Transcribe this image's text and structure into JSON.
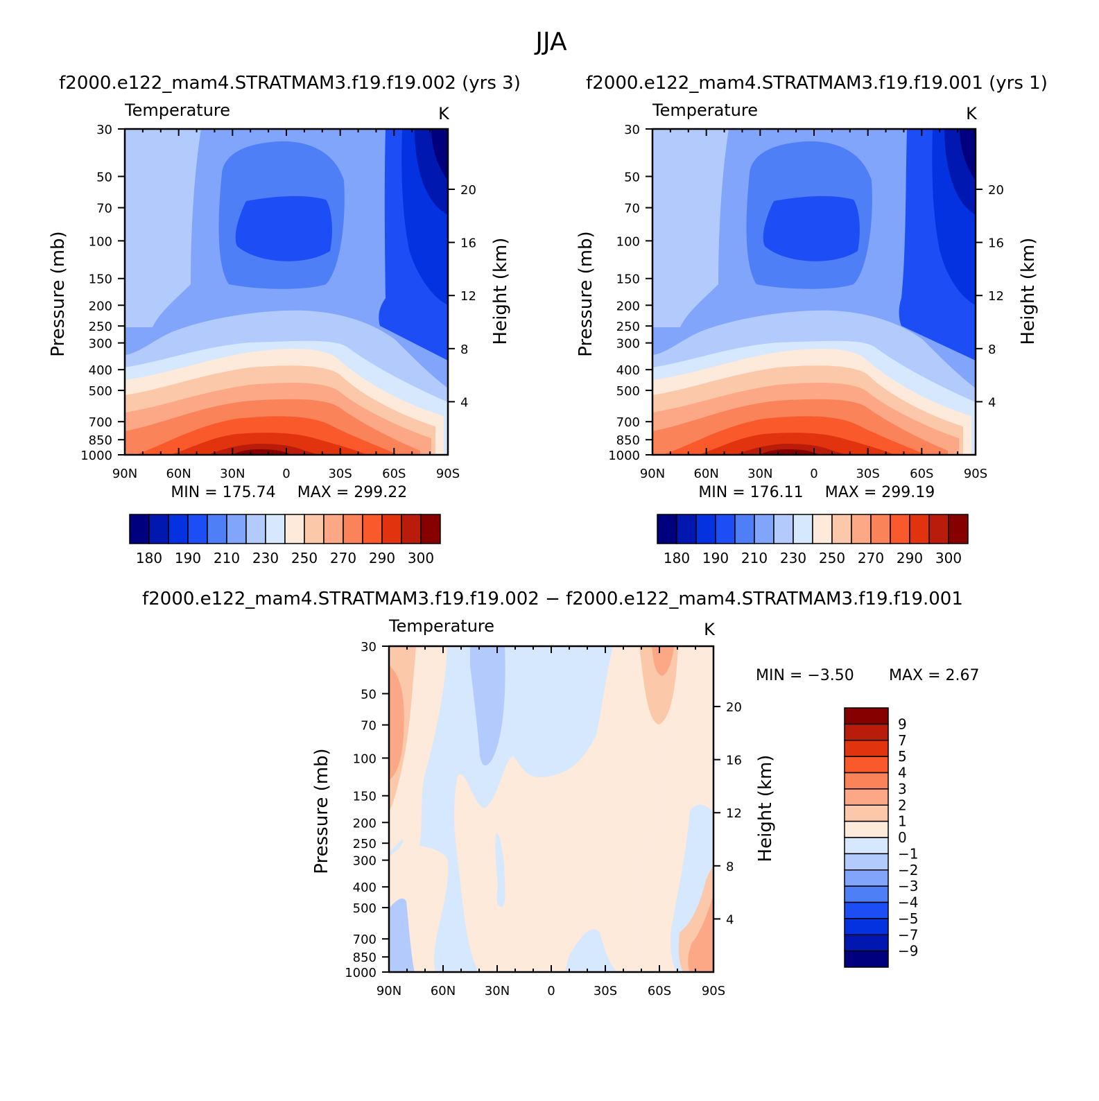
{
  "page": {
    "title": "JJA",
    "diff_title": "f2000.e122_mam4.STRATMAM3.f19.f19.002 − f2000.e122_mam4.STRATMAM3.f19.f19.001"
  },
  "colors": {
    "abs_palette": [
      "#00007f",
      "#0018b0",
      "#0532e0",
      "#1c4df5",
      "#4f7ff7",
      "#80a5fa",
      "#b3cbfc",
      "#d6e8fd",
      "#fdeadb",
      "#fcc8aa",
      "#fca886",
      "#fb835a",
      "#fa5a2b",
      "#e1340e",
      "#b91c0a",
      "#860000"
    ],
    "diff_palette": [
      "#00007f",
      "#0018b0",
      "#0532e0",
      "#1c4df5",
      "#4f7ff7",
      "#80a5fa",
      "#b3cbfc",
      "#d6e8fd",
      "#fdeadb",
      "#fcc8aa",
      "#fca886",
      "#fb835a",
      "#fa5a2b",
      "#e1340e",
      "#b91c0a",
      "#860000"
    ]
  },
  "chart_data": [
    {
      "id": "panel1",
      "type": "heatmap",
      "plot_type": "latitude-pressure contour",
      "title": "f2000.e122_mam4.STRATMAM3.f19.f19.002  (yrs  3)",
      "variable": "Temperature",
      "units": "K",
      "ylabel": "Pressure  (mb)",
      "ylabel_right": "Height  (km)",
      "x_ticks": [
        "90N",
        "60N",
        "30N",
        "0",
        "30S",
        "60S",
        "90S"
      ],
      "x_values": [
        90,
        60,
        30,
        0,
        -30,
        -60,
        -90
      ],
      "y_ticks": [
        "30",
        "50",
        "70",
        "100",
        "150",
        "200",
        "250",
        "300",
        "400",
        "500",
        "700",
        "850",
        "1000"
      ],
      "y_values": [
        30,
        50,
        70,
        100,
        150,
        200,
        250,
        300,
        400,
        500,
        700,
        850,
        1000
      ],
      "ylim": [
        1000,
        30
      ],
      "right_ticks": [
        "20",
        "16",
        "12",
        "8",
        "4"
      ],
      "right_values": [
        20,
        16,
        12,
        8,
        4
      ],
      "min_label": "MIN  =  175.74",
      "max_label": "MAX  =  299.22",
      "min": 175.74,
      "max": 299.22,
      "colorbar_labels": [
        "180",
        "190",
        "210",
        "230",
        "250",
        "270",
        "290",
        "300"
      ]
    },
    {
      "id": "panel2",
      "type": "heatmap",
      "plot_type": "latitude-pressure contour",
      "title": "f2000.e122_mam4.STRATMAM3.f19.f19.001  (yrs  1)",
      "variable": "Temperature",
      "units": "K",
      "ylabel": "Pressure  (mb)",
      "ylabel_right": "Height  (km)",
      "x_ticks": [
        "90N",
        "60N",
        "30N",
        "0",
        "30S",
        "60S",
        "90S"
      ],
      "x_values": [
        90,
        60,
        30,
        0,
        -30,
        -60,
        -90
      ],
      "y_ticks": [
        "30",
        "50",
        "70",
        "100",
        "150",
        "200",
        "250",
        "300",
        "400",
        "500",
        "700",
        "850",
        "1000"
      ],
      "y_values": [
        30,
        50,
        70,
        100,
        150,
        200,
        250,
        300,
        400,
        500,
        700,
        850,
        1000
      ],
      "ylim": [
        1000,
        30
      ],
      "right_ticks": [
        "20",
        "16",
        "12",
        "8",
        "4"
      ],
      "right_values": [
        20,
        16,
        12,
        8,
        4
      ],
      "min_label": "MIN  =  176.11",
      "max_label": "MAX  =  299.19",
      "min": 176.11,
      "max": 299.19,
      "colorbar_labels": [
        "180",
        "190",
        "210",
        "230",
        "250",
        "270",
        "290",
        "300"
      ]
    },
    {
      "id": "panel3",
      "type": "heatmap",
      "plot_type": "latitude-pressure difference contour",
      "variable": "Temperature",
      "units": "K",
      "ylabel": "Pressure  (mb)",
      "ylabel_right": "Height  (km)",
      "x_ticks": [
        "90N",
        "60N",
        "30N",
        "0",
        "30S",
        "60S",
        "90S"
      ],
      "x_values": [
        90,
        60,
        30,
        0,
        -30,
        -60,
        -90
      ],
      "y_ticks": [
        "30",
        "50",
        "70",
        "100",
        "150",
        "200",
        "250",
        "300",
        "400",
        "500",
        "700",
        "850",
        "1000"
      ],
      "y_values": [
        30,
        50,
        70,
        100,
        150,
        200,
        250,
        300,
        400,
        500,
        700,
        850,
        1000
      ],
      "ylim": [
        1000,
        30
      ],
      "right_ticks": [
        "20",
        "16",
        "12",
        "8",
        "4"
      ],
      "right_values": [
        20,
        16,
        12,
        8,
        4
      ],
      "min_label": "MIN  =     −3.50",
      "max_label": "MAX  =      2.67",
      "min": -3.5,
      "max": 2.67,
      "colorbar_labels": [
        "9",
        "7",
        "5",
        "4",
        "3",
        "2",
        "1",
        "0",
        "−1",
        "−2",
        "−3",
        "−4",
        "−5",
        "−7",
        "−9"
      ]
    }
  ]
}
